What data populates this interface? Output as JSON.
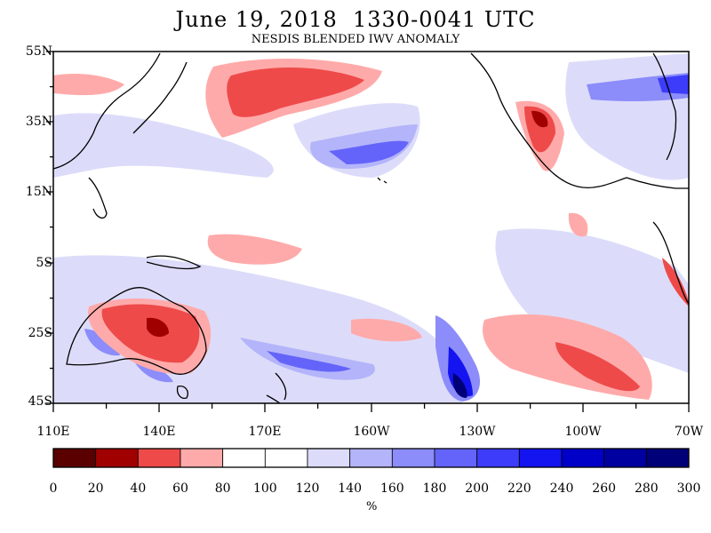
{
  "title": "June 19, 2018  1330-0041 UTC",
  "subtitle": "NESDIS BLENDED IWV ANOMALY",
  "lat_labels": [
    "55N",
    "35N",
    "15N",
    "5S",
    "25S",
    "45S"
  ],
  "lon_labels": [
    "110E",
    "140E",
    "170E",
    "160W",
    "130W",
    "100W",
    "70W"
  ],
  "colorbar": {
    "labels": [
      "0",
      "20",
      "40",
      "60",
      "80",
      "100",
      "120",
      "140",
      "160",
      "180",
      "200",
      "220",
      "240",
      "260",
      "280",
      "300"
    ],
    "units": "%",
    "colors": [
      "#5a0000",
      "#a00000",
      "#ee4a4a",
      "#ffaaaa",
      "#ffffff",
      "#ffffff",
      "#dcdcfa",
      "#b4b4fa",
      "#8c8cfa",
      "#6464fa",
      "#3c3cfa",
      "#1414f0",
      "#0000c8",
      "#0000a0",
      "#000078"
    ]
  },
  "colors": {
    "frame": "#000000",
    "coast": "#000000",
    "background": "#ffffff"
  }
}
